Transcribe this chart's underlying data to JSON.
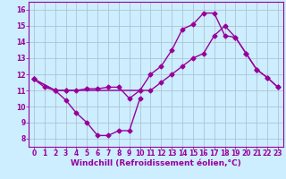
{
  "background_color": "#cceeff",
  "grid_color": "#aabbcc",
  "line_color": "#990099",
  "marker": "D",
  "markersize": 2.5,
  "linewidth": 1.0,
  "xlim": [
    -0.5,
    23.5
  ],
  "ylim": [
    7.5,
    16.5
  ],
  "xticks": [
    0,
    1,
    2,
    3,
    4,
    5,
    6,
    7,
    8,
    9,
    10,
    11,
    12,
    13,
    14,
    15,
    16,
    17,
    18,
    19,
    20,
    21,
    22,
    23
  ],
  "yticks": [
    8,
    9,
    10,
    11,
    12,
    13,
    14,
    15,
    16
  ],
  "xlabel": "Windchill (Refroidissement éolien,°C)",
  "xlabel_fontsize": 6.5,
  "tick_fontsize": 5.5,
  "line1_x": [
    0,
    1,
    2,
    3,
    4,
    5,
    6,
    7,
    8,
    9,
    10
  ],
  "line1_y": [
    11.7,
    11.2,
    11.0,
    10.4,
    9.6,
    9.0,
    8.2,
    8.2,
    8.5,
    8.5,
    10.5
  ],
  "line2_x": [
    0,
    2,
    3,
    10,
    11,
    12,
    13,
    14,
    15,
    16,
    17,
    18,
    19,
    20,
    21,
    22,
    23
  ],
  "line2_y": [
    11.7,
    11.0,
    11.0,
    11.0,
    12.0,
    12.5,
    13.5,
    14.8,
    15.1,
    15.8,
    15.8,
    14.4,
    14.3,
    13.3,
    12.3,
    11.8,
    11.2
  ],
  "line3_x": [
    0,
    2,
    3,
    4,
    5,
    6,
    7,
    8,
    9,
    10,
    11,
    12,
    13,
    14,
    15,
    16,
    17,
    18,
    19,
    20,
    21,
    22,
    23
  ],
  "line3_y": [
    11.7,
    11.0,
    11.0,
    11.0,
    11.1,
    11.1,
    11.2,
    11.2,
    10.5,
    11.0,
    11.0,
    11.5,
    12.0,
    12.5,
    13.0,
    13.3,
    14.4,
    15.0,
    14.3,
    13.3,
    12.3,
    11.8,
    11.2
  ]
}
